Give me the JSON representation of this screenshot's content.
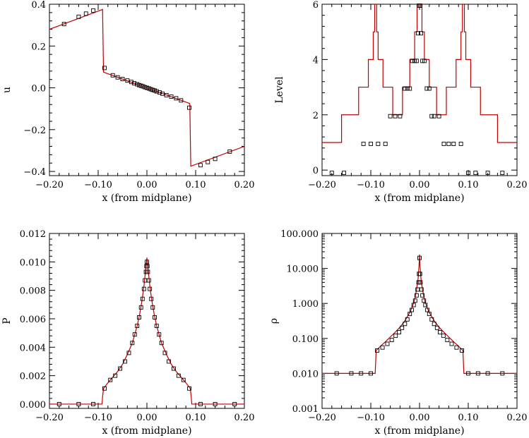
{
  "colors": {
    "model_line": "#c00000",
    "markers": "#000000",
    "axes": "#000000"
  },
  "chart_data": [
    {
      "id": "u",
      "type": "line",
      "xlabel": "x (from midplane)",
      "ylabel": "u",
      "xlim": [
        -0.2,
        0.2
      ],
      "ylim": [
        -0.42,
        0.4
      ],
      "log_y": false,
      "grid": false,
      "xticks": [
        -0.2,
        -0.1,
        0.0,
        0.1,
        0.2
      ],
      "xtick_labels": [
        "−0.20",
        "−0.10",
        "0.00",
        "0.10",
        "0.20"
      ],
      "yticks": [
        -0.4,
        -0.2,
        0.0,
        0.2,
        0.4
      ],
      "ytick_labels": [
        "−0.4",
        "−0.2",
        "0.0",
        "0.2",
        "0.4"
      ],
      "line": {
        "x": [
          -0.2,
          -0.091,
          -0.089,
          0.0,
          0.088,
          0.09,
          0.2
        ],
        "y": [
          0.28,
          0.375,
          0.075,
          0.0,
          -0.075,
          -0.375,
          -0.28
        ]
      },
      "markers": {
        "x": [
          -0.17,
          -0.14,
          -0.125,
          -0.11,
          -0.087,
          -0.07,
          -0.06,
          -0.05,
          -0.04,
          -0.032,
          -0.026,
          -0.02,
          -0.016,
          -0.012,
          -0.008,
          -0.004,
          0.0,
          0.004,
          0.008,
          0.012,
          0.016,
          0.02,
          0.026,
          0.032,
          0.04,
          0.05,
          0.06,
          0.07,
          0.087,
          0.11,
          0.125,
          0.14,
          0.17
        ],
        "y": [
          0.305,
          0.34,
          0.355,
          0.37,
          0.095,
          0.06,
          0.05,
          0.042,
          0.035,
          0.028,
          0.022,
          0.017,
          0.013,
          0.01,
          0.007,
          0.003,
          0.0,
          -0.003,
          -0.007,
          -0.01,
          -0.013,
          -0.017,
          -0.022,
          -0.028,
          -0.035,
          -0.042,
          -0.05,
          -0.06,
          -0.095,
          -0.37,
          -0.355,
          -0.34,
          -0.305
        ]
      }
    },
    {
      "id": "level",
      "type": "line",
      "xlabel": "x (from midplane)",
      "ylabel": "Level",
      "xlim": [
        -0.2,
        0.2
      ],
      "ylim": [
        -0.2,
        6
      ],
      "log_y": false,
      "grid": false,
      "xticks": [
        -0.2,
        -0.1,
        0.0,
        0.1,
        0.2
      ],
      "xtick_labels": [
        "−0.20",
        "−0.10",
        "0.00",
        "0.10",
        "0.20"
      ],
      "yticks": [
        0,
        2,
        4,
        6
      ],
      "ytick_labels": [
        "0",
        "2",
        "4",
        "6"
      ],
      "line": {
        "x": [
          -0.2,
          -0.16,
          -0.16,
          -0.125,
          -0.125,
          -0.105,
          -0.105,
          -0.095,
          -0.095,
          -0.092,
          -0.092,
          -0.088,
          -0.088,
          -0.085,
          -0.085,
          -0.075,
          -0.075,
          -0.055,
          -0.055,
          -0.035,
          -0.035,
          -0.02,
          -0.02,
          -0.01,
          -0.01,
          -0.005,
          -0.005,
          -0.002,
          -0.002,
          0.002,
          0.002,
          0.005,
          0.005,
          0.01,
          0.01,
          0.02,
          0.02,
          0.035,
          0.035,
          0.055,
          0.055,
          0.075,
          0.075,
          0.085,
          0.085,
          0.088,
          0.088,
          0.092,
          0.092,
          0.095,
          0.095,
          0.105,
          0.105,
          0.125,
          0.125,
          0.16,
          0.16,
          0.2
        ],
        "y": [
          1,
          1,
          2,
          2,
          3,
          3,
          4,
          4,
          5,
          5,
          6,
          6,
          5,
          5,
          4,
          4,
          3,
          3,
          2,
          2,
          3,
          3,
          4,
          4,
          5,
          5,
          6,
          6,
          6,
          6,
          6,
          6,
          5,
          5,
          4,
          4,
          3,
          3,
          2,
          2,
          3,
          3,
          4,
          4,
          5,
          5,
          6,
          6,
          5,
          5,
          4,
          4,
          3,
          3,
          2,
          2,
          1,
          1
        ]
      },
      "markers": {
        "x": [
          -0.18,
          -0.155,
          -0.115,
          -0.1,
          -0.085,
          -0.07,
          -0.06,
          -0.05,
          -0.04,
          -0.03,
          -0.025,
          -0.02,
          -0.015,
          -0.01,
          -0.006,
          -0.003,
          -0.001,
          0.001,
          0.003,
          0.006,
          0.01,
          0.015,
          0.02,
          0.025,
          0.03,
          0.04,
          0.05,
          0.06,
          0.07,
          0.085,
          0.1,
          0.115,
          0.14,
          0.17
        ],
        "y": [
          -0.1,
          -0.1,
          0.95,
          0.95,
          0.95,
          0.95,
          1.95,
          1.95,
          1.95,
          2.95,
          2.95,
          2.95,
          3.95,
          3.95,
          3.95,
          4.95,
          5.95,
          5.95,
          4.95,
          3.95,
          3.95,
          2.95,
          2.95,
          1.95,
          1.95,
          1.95,
          0.95,
          0.95,
          0.95,
          0.95,
          -0.1,
          -0.1,
          -0.1,
          -0.1
        ]
      }
    },
    {
      "id": "pressure",
      "type": "line",
      "xlabel": "x (from midplane)",
      "ylabel": "P",
      "xlim": [
        -0.2,
        0.2
      ],
      "ylim": [
        -0.0003,
        0.012
      ],
      "log_y": false,
      "grid": false,
      "xticks": [
        -0.2,
        -0.1,
        0.0,
        0.1,
        0.2
      ],
      "xtick_labels": [
        "−0.20",
        "−0.10",
        "0.00",
        "0.10",
        "0.20"
      ],
      "yticks": [
        0.0,
        0.002,
        0.004,
        0.006,
        0.008,
        0.01,
        0.012
      ],
      "ytick_labels": [
        "0.000",
        "0.002",
        "0.004",
        "0.006",
        "0.008",
        "0.010",
        "0.012"
      ],
      "line": {
        "x": [
          -0.2,
          -0.092,
          -0.091,
          -0.089,
          -0.08,
          -0.06,
          -0.05,
          -0.04,
          -0.03,
          -0.02,
          -0.015,
          -0.01,
          -0.006,
          -0.003,
          -0.001,
          0.0,
          0.001,
          0.003,
          0.006,
          0.01,
          0.015,
          0.02,
          0.03,
          0.04,
          0.05,
          0.06,
          0.08,
          0.089,
          0.091,
          0.092,
          0.2
        ],
        "y": [
          0.0,
          0.0,
          0.0005,
          0.0011,
          0.0015,
          0.0023,
          0.0028,
          0.0035,
          0.0043,
          0.0055,
          0.0063,
          0.0073,
          0.0083,
          0.0093,
          0.0099,
          0.0103,
          0.0099,
          0.0093,
          0.0083,
          0.0073,
          0.0063,
          0.0055,
          0.0043,
          0.0035,
          0.0028,
          0.0023,
          0.0015,
          0.0011,
          0.0005,
          0.0,
          0.0
        ]
      },
      "markers": {
        "x": [
          -0.18,
          -0.14,
          -0.11,
          -0.087,
          -0.075,
          -0.065,
          -0.055,
          -0.045,
          -0.037,
          -0.03,
          -0.025,
          -0.02,
          -0.016,
          -0.012,
          -0.009,
          -0.006,
          -0.004,
          -0.002,
          -0.001,
          0.0,
          0.001,
          0.002,
          0.004,
          0.006,
          0.009,
          0.012,
          0.016,
          0.02,
          0.025,
          0.03,
          0.037,
          0.045,
          0.055,
          0.065,
          0.075,
          0.087,
          0.11,
          0.14,
          0.18
        ],
        "y": [
          0.0,
          0.0,
          0.0,
          0.0011,
          0.0017,
          0.002,
          0.0025,
          0.003,
          0.0036,
          0.0043,
          0.0049,
          0.0055,
          0.0061,
          0.0068,
          0.0074,
          0.0081,
          0.0087,
          0.0093,
          0.0097,
          0.01,
          0.0097,
          0.0093,
          0.0087,
          0.0081,
          0.0074,
          0.0068,
          0.0061,
          0.0055,
          0.0049,
          0.0043,
          0.0036,
          0.003,
          0.0025,
          0.002,
          0.0017,
          0.0011,
          0.0,
          0.0,
          0.0
        ]
      }
    },
    {
      "id": "density",
      "type": "line",
      "xlabel": "x (from midplane)",
      "ylabel": "ρ",
      "xlim": [
        -0.2,
        0.2
      ],
      "ylim": [
        0.001,
        100
      ],
      "log_y": true,
      "grid": false,
      "xticks": [
        -0.2,
        -0.1,
        0.0,
        0.1,
        0.2
      ],
      "xtick_labels": [
        "−0.20",
        "−0.10",
        "0.00",
        "0.10",
        "0.20"
      ],
      "yticks": [
        0.001,
        0.01,
        0.1,
        1,
        10,
        100
      ],
      "ytick_labels": [
        "0.001",
        "0.010",
        "0.100",
        "1.000",
        "10.000",
        "100.000"
      ],
      "line": {
        "x": [
          -0.2,
          -0.091,
          -0.089,
          -0.08,
          -0.07,
          -0.06,
          -0.05,
          -0.04,
          -0.03,
          -0.02,
          -0.015,
          -0.01,
          -0.006,
          -0.003,
          -0.001,
          0.0,
          0.001,
          0.003,
          0.006,
          0.01,
          0.015,
          0.02,
          0.03,
          0.04,
          0.05,
          0.06,
          0.07,
          0.08,
          0.089,
          0.091,
          0.2
        ],
        "y": [
          0.01,
          0.01,
          0.045,
          0.06,
          0.08,
          0.11,
          0.15,
          0.21,
          0.32,
          0.55,
          0.8,
          1.3,
          2.5,
          5.0,
          12.0,
          25.0,
          12.0,
          5.0,
          2.5,
          1.3,
          0.8,
          0.55,
          0.32,
          0.21,
          0.15,
          0.11,
          0.08,
          0.06,
          0.045,
          0.01,
          0.01
        ]
      },
      "markers": {
        "x": [
          -0.17,
          -0.14,
          -0.12,
          -0.1,
          -0.087,
          -0.076,
          -0.066,
          -0.057,
          -0.049,
          -0.042,
          -0.036,
          -0.03,
          -0.025,
          -0.02,
          -0.016,
          -0.012,
          -0.009,
          -0.006,
          -0.004,
          -0.002,
          -0.001,
          0.0,
          0.001,
          0.002,
          0.004,
          0.006,
          0.009,
          0.012,
          0.016,
          0.02,
          0.025,
          0.03,
          0.036,
          0.042,
          0.049,
          0.057,
          0.066,
          0.076,
          0.087,
          0.1,
          0.12,
          0.14,
          0.17
        ],
        "y": [
          0.01,
          0.01,
          0.01,
          0.01,
          0.045,
          0.055,
          0.07,
          0.09,
          0.12,
          0.15,
          0.2,
          0.26,
          0.35,
          0.5,
          0.65,
          0.9,
          1.2,
          1.7,
          2.5,
          4.0,
          7.0,
          20.0,
          7.0,
          4.0,
          2.5,
          1.7,
          1.2,
          0.9,
          0.65,
          0.5,
          0.35,
          0.26,
          0.2,
          0.15,
          0.12,
          0.09,
          0.07,
          0.055,
          0.045,
          0.01,
          0.01,
          0.01,
          0.01
        ]
      }
    }
  ]
}
